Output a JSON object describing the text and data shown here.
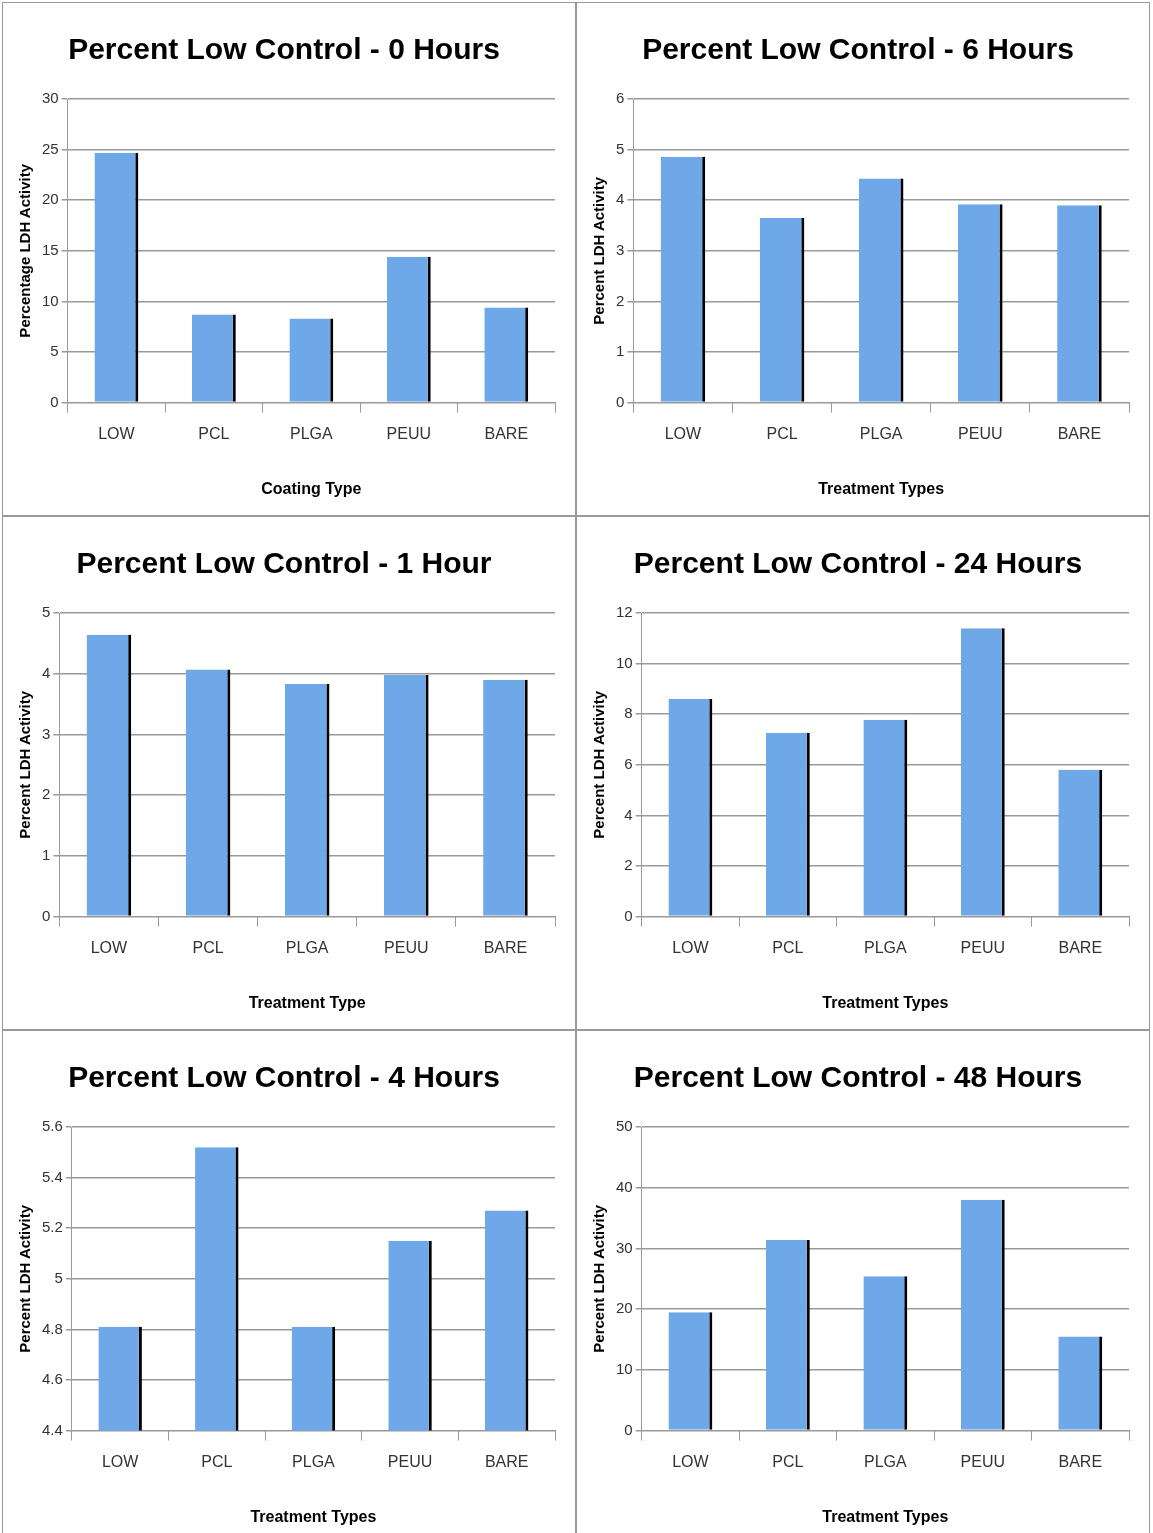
{
  "chart_data": [
    {
      "type": "bar",
      "title": "Percent Low Control - 0 Hours",
      "xlabel": "Coating Type",
      "ylabel": "Percentage LDH Activity",
      "categories": [
        "LOW",
        "PCL",
        "PLGA",
        "PEUU",
        "BARE"
      ],
      "values": [
        24.7,
        8.7,
        8.3,
        14.4,
        9.4
      ],
      "color": "#6fa8e8",
      "ylim": [
        0,
        30
      ],
      "yticks": [
        0,
        5,
        10,
        15,
        20,
        25,
        30
      ],
      "grid": "y"
    },
    {
      "type": "bar",
      "title": "Percent Low Control - 6 Hours",
      "xlabel": "Treatment Types",
      "ylabel": "Percent LDH Activity",
      "categories": [
        "LOW",
        "PCL",
        "PLGA",
        "PEUU",
        "BARE"
      ],
      "values": [
        4.86,
        3.65,
        4.43,
        3.92,
        3.9
      ],
      "color": "#6fa8e8",
      "ylim": [
        0,
        6
      ],
      "yticks": [
        0,
        1,
        2,
        3,
        4,
        5,
        6
      ],
      "grid": "y"
    },
    {
      "type": "bar",
      "title": "Percent Low Control - 1 Hour",
      "xlabel": "Treatment Type",
      "ylabel": "Percent LDH Activity",
      "categories": [
        "LOW",
        "PCL",
        "PLGA",
        "PEUU",
        "BARE"
      ],
      "values": [
        4.64,
        4.07,
        3.83,
        3.98,
        3.9
      ],
      "color": "#6fa8e8",
      "ylim": [
        0,
        5
      ],
      "yticks": [
        0,
        1,
        2,
        3,
        4,
        5
      ],
      "grid": "y"
    },
    {
      "type": "bar",
      "title": "Percent Low Control - 24 Hours",
      "xlabel": "Treatment Types",
      "ylabel": "Percent LDH Activity",
      "categories": [
        "LOW",
        "PCL",
        "PLGA",
        "PEUU",
        "BARE"
      ],
      "values": [
        8.6,
        7.27,
        7.78,
        11.4,
        5.8
      ],
      "color": "#6fa8e8",
      "ylim": [
        0,
        12
      ],
      "yticks": [
        0,
        2,
        4,
        6,
        8,
        10,
        12
      ],
      "grid": "y"
    },
    {
      "type": "bar",
      "title": "Percent Low Control - 4 Hours",
      "xlabel": "Treatment Types",
      "ylabel": "Percent LDH Activity",
      "categories": [
        "LOW",
        "PCL",
        "PLGA",
        "PEUU",
        "BARE"
      ],
      "values": [
        4.81,
        5.52,
        4.81,
        5.15,
        5.27
      ],
      "color": "#6fa8e8",
      "ylim": [
        4.4,
        5.6
      ],
      "yticks": [
        4.4,
        4.6,
        4.8,
        5,
        5.2,
        5.4,
        5.6
      ],
      "grid": "y"
    },
    {
      "type": "bar",
      "title": "Percent Low Control - 48 Hours",
      "xlabel": "Treatment Types",
      "ylabel": "Percent LDH Activity",
      "categories": [
        "LOW",
        "PCL",
        "PLGA",
        "PEUU",
        "BARE"
      ],
      "values": [
        19.5,
        31.4,
        25.4,
        38,
        15.5
      ],
      "color": "#6fa8e8",
      "ylim": [
        0,
        50
      ],
      "yticks": [
        0,
        10,
        20,
        30,
        40,
        50
      ],
      "grid": "y"
    }
  ]
}
